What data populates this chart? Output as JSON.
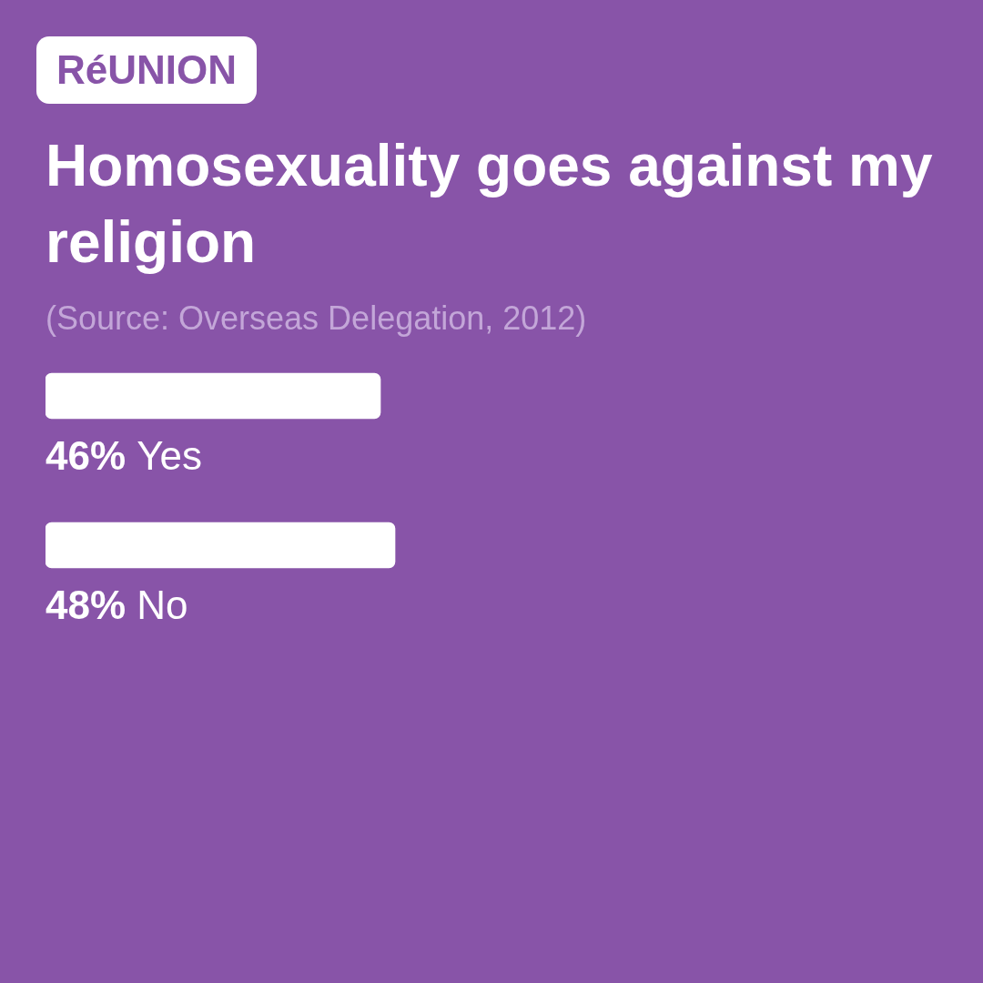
{
  "chart_data": {
    "type": "bar",
    "orientation": "horizontal",
    "title": "Homosexuality goes against my religion",
    "annotations": [
      "RéUNION",
      "(Source: Overseas Delegation, 2012)"
    ],
    "categories": [
      "Yes",
      "No"
    ],
    "values": [
      46,
      48
    ],
    "value_labels": [
      "46%",
      "48%"
    ],
    "color": "#ffffff",
    "tick_labels": false
  }
}
